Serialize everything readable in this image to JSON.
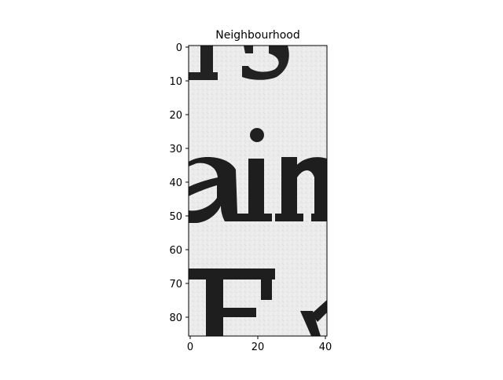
{
  "figure": {
    "title": "Neighbourhood",
    "x_ticks": [
      "0",
      "20",
      "40"
    ],
    "y_ticks": [
      "0",
      "10",
      "20",
      "30",
      "40",
      "50",
      "60",
      "70",
      "80"
    ],
    "image": {
      "content_type": "grayscale scanned text crop",
      "visible_text_fragments": [
        "r",
        "s",
        "ain",
        "Ev"
      ]
    },
    "colors": {
      "background": "#ffffff",
      "axes": "#000000",
      "paper": "#ececec",
      "ink": "#202020"
    }
  }
}
